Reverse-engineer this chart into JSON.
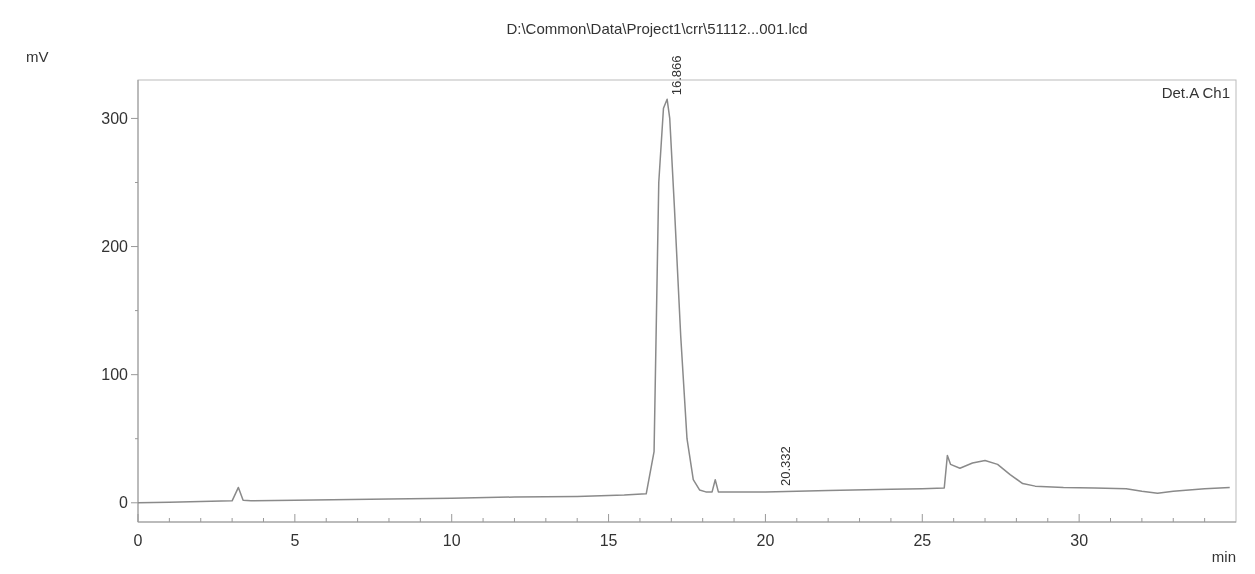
{
  "chart_data": {
    "type": "line",
    "title": "D:\\Common\\Data\\Project1\\crr\\51112...001.lcd",
    "xlabel": "min",
    "ylabel": "mV",
    "annotations": [
      {
        "text": "16.866",
        "x": 16.866,
        "y": 315
      },
      {
        "text": "20.332",
        "x": 20.332,
        "y": 10
      },
      "Det.A Ch1"
    ],
    "xlim": [
      0,
      35
    ],
    "ylim": [
      -15,
      330
    ],
    "xticks": [
      0,
      {
        "value": 1,
        "label": null
      },
      {
        "value": 2,
        "label": null
      },
      {
        "value": 3,
        "label": null
      },
      {
        "value": 4,
        "label": null
      },
      5,
      {
        "value": 6,
        "label": null
      },
      {
        "value": 7,
        "label": null
      },
      {
        "value": 8,
        "label": null
      },
      {
        "value": 9,
        "label": null
      },
      10,
      {
        "value": 11,
        "label": null
      },
      {
        "value": 12,
        "label": null
      },
      {
        "value": 13,
        "label": null
      },
      {
        "value": 14,
        "label": null
      },
      15,
      {
        "value": 16,
        "label": null
      },
      {
        "value": 17,
        "label": null
      },
      {
        "value": 18,
        "label": null
      },
      {
        "value": 19,
        "label": null
      },
      20,
      {
        "value": 21,
        "label": null
      },
      {
        "value": 22,
        "label": null
      },
      {
        "value": 23,
        "label": null
      },
      {
        "value": 24,
        "label": null
      },
      25,
      {
        "value": 26,
        "label": null
      },
      {
        "value": 27,
        "label": null
      },
      {
        "value": 28,
        "label": null
      },
      {
        "value": 29,
        "label": null
      },
      30,
      {
        "value": 31,
        "label": null
      },
      {
        "value": 32,
        "label": null
      },
      {
        "value": 33,
        "label": null
      },
      {
        "value": 34,
        "label": null
      }
    ],
    "yticks": [
      0,
      {
        "value": 50,
        "label": null
      },
      100,
      {
        "value": 150,
        "label": null
      },
      200,
      {
        "value": 250,
        "label": null
      },
      300
    ],
    "grid": false,
    "series": [
      {
        "color": "#8a8a8a",
        "x": [
          0,
          1,
          2,
          3.0,
          3.2,
          3.35,
          3.6,
          5,
          8,
          10,
          12,
          14,
          15.5,
          16.2,
          16.45,
          16.6,
          16.75,
          16.866,
          16.95,
          17.1,
          17.3,
          17.5,
          17.7,
          17.9,
          18.1,
          18.3,
          18.4,
          18.5,
          19,
          20,
          22,
          24,
          25,
          25.7,
          25.8,
          25.9,
          26.2,
          26.6,
          27,
          27.4,
          27.8,
          28.2,
          28.6,
          29.5,
          30.5,
          31.5,
          32,
          32.5,
          33,
          34,
          34.8
        ],
        "values": [
          0,
          0.5,
          1,
          1.5,
          12,
          2,
          1.5,
          2,
          3,
          3.5,
          4.5,
          5,
          6,
          7,
          40,
          250,
          308,
          315,
          300,
          230,
          130,
          50,
          18,
          10,
          8.5,
          8.5,
          18,
          8.5,
          8.5,
          8.5,
          9.5,
          10.5,
          11,
          11.5,
          37,
          30,
          27,
          31,
          33,
          30,
          22,
          15,
          13,
          12,
          11.5,
          11,
          9,
          7.5,
          9,
          11,
          12
        ]
      }
    ]
  }
}
